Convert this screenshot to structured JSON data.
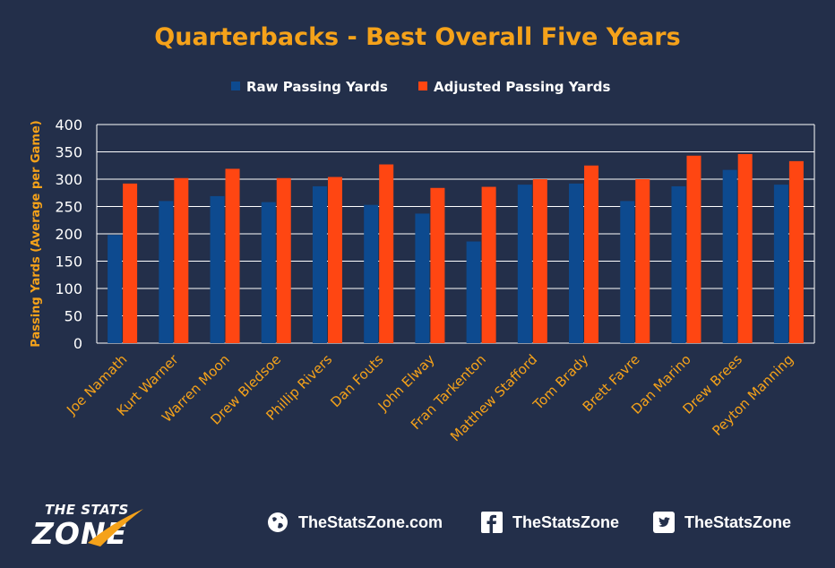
{
  "chart_data": {
    "type": "bar",
    "title": "Quarterbacks - Best Overall Five Years",
    "ylabel": "Passing  Yards  (Average per Game)",
    "xlabel": "",
    "ylim": [
      0,
      400
    ],
    "yticks": [
      0,
      50,
      100,
      150,
      200,
      250,
      300,
      350,
      400
    ],
    "grid": true,
    "legend_position": "top",
    "categories": [
      "Joe Namath",
      "Kurt Warner",
      "Warren Moon",
      "Drew Bledsoe",
      "Phillip Rivers",
      "Dan Fouts",
      "John Elway",
      "Fran Tarkenton",
      "Matthew Stafford",
      "Tom Brady",
      "Brett Favre",
      "Dan Marino",
      "Drew Brees",
      "Peyton Manning"
    ],
    "series": [
      {
        "name": "Raw Passing Yards",
        "color": "#0d4a8f",
        "values": [
          198,
          260,
          269,
          258,
          287,
          253,
          237,
          186,
          290,
          292,
          260,
          287,
          317,
          290
        ]
      },
      {
        "name": "Adjusted Passing Yards",
        "color": "#ff4612",
        "values": [
          292,
          302,
          319,
          302,
          304,
          327,
          284,
          286,
          300,
          325,
          300,
          343,
          346,
          333
        ]
      }
    ]
  },
  "colors": {
    "background": "#232f4a",
    "title": "#f5a21a",
    "axis_text": "#ffffff",
    "gridline": "#ffffff"
  },
  "logo": {
    "top": "THE STATS",
    "bottom": "ZONE"
  },
  "footer": {
    "website": "TheStatsZone.com",
    "facebook": "TheStatsZone",
    "twitter": "TheStatsZone",
    "icons": [
      "globe-icon",
      "facebook-icon",
      "twitter-icon"
    ]
  }
}
